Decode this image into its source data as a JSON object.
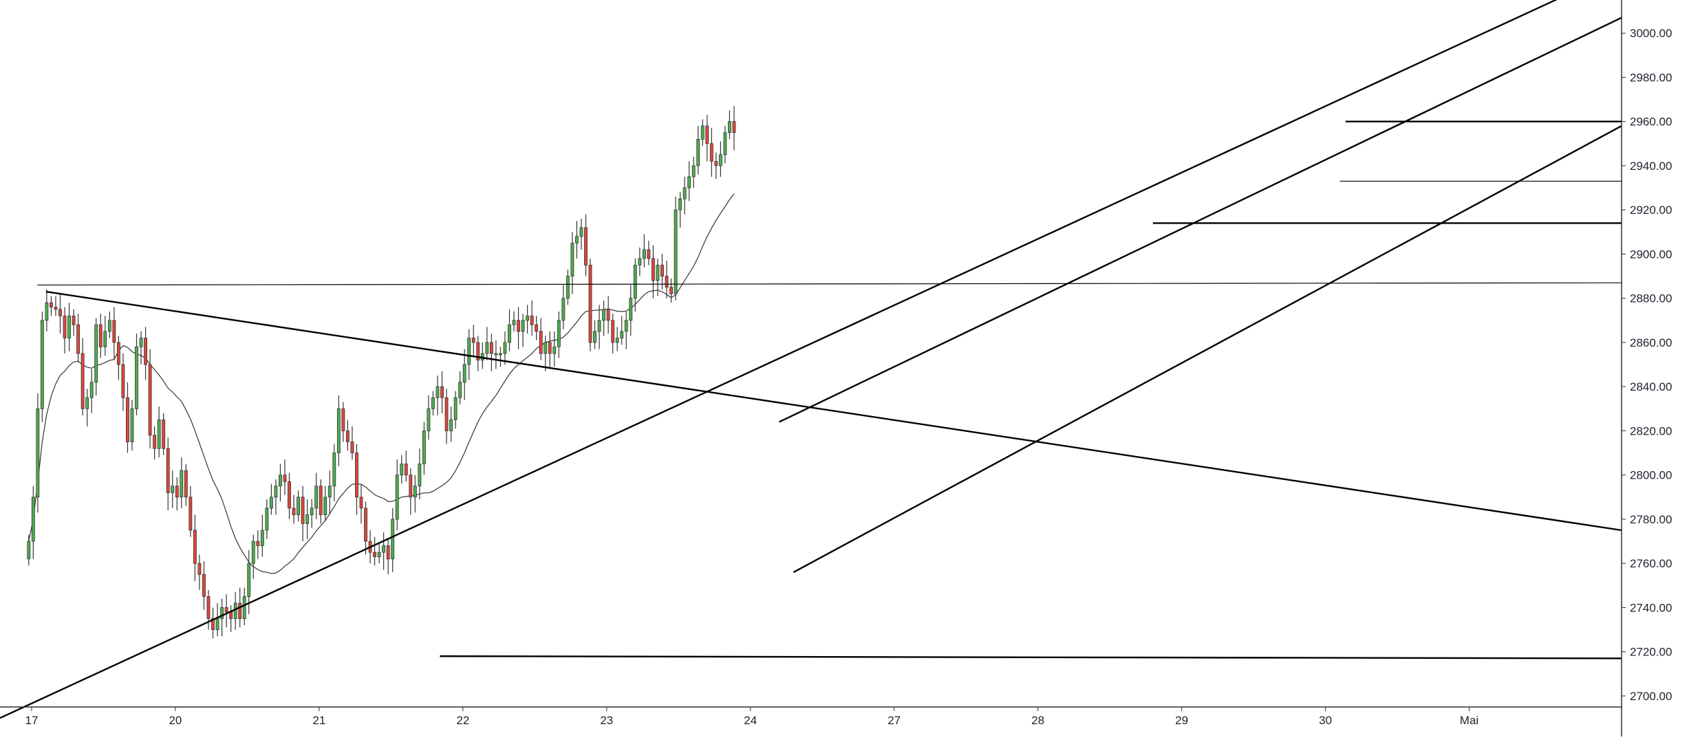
{
  "chart_data": {
    "type": "candlestick",
    "title": "",
    "xlabel": "",
    "ylabel": "",
    "ylim": [
      2695,
      3015
    ],
    "y_ticks": [
      2700,
      2720,
      2740,
      2760,
      2780,
      2800,
      2820,
      2840,
      2860,
      2880,
      2900,
      2920,
      2940,
      2960,
      2980,
      3000
    ],
    "x_ticks": [
      {
        "label": "17",
        "x": 0
      },
      {
        "label": "20",
        "x": 5
      },
      {
        "label": "21",
        "x": 10
      },
      {
        "label": "22",
        "x": 15
      },
      {
        "label": "23",
        "x": 20
      },
      {
        "label": "24",
        "x": 25
      },
      {
        "label": "27",
        "x": 30
      },
      {
        "label": "28",
        "x": 35
      },
      {
        "label": "29",
        "x": 40
      },
      {
        "label": "30",
        "x": 45
      },
      {
        "label": "Mai",
        "x": 50
      }
    ],
    "xlim": [
      -1.1,
      55.3
    ],
    "grid": false,
    "colors": {
      "up": "#4caf50",
      "down": "#e0463c",
      "wick": "#333333",
      "line": "#000000",
      "ma": "#333333"
    },
    "closes": [
      2770,
      2790,
      2830,
      2870,
      2878,
      2876,
      2875,
      2872,
      2862,
      2872,
      2868,
      2855,
      2830,
      2835,
      2842,
      2868,
      2858,
      2865,
      2870,
      2860,
      2850,
      2835,
      2815,
      2830,
      2858,
      2862,
      2850,
      2818,
      2812,
      2825,
      2812,
      2792,
      2795,
      2790,
      2802,
      2790,
      2775,
      2760,
      2755,
      2745,
      2735,
      2730,
      2735,
      2740,
      2738,
      2735,
      2742,
      2735,
      2745,
      2760,
      2770,
      2768,
      2775,
      2785,
      2790,
      2795,
      2800,
      2797,
      2785,
      2782,
      2790,
      2778,
      2782,
      2785,
      2795,
      2782,
      2790,
      2795,
      2810,
      2830,
      2820,
      2815,
      2810,
      2790,
      2785,
      2770,
      2765,
      2763,
      2765,
      2768,
      2762,
      2780,
      2800,
      2805,
      2800,
      2790,
      2795,
      2805,
      2820,
      2830,
      2835,
      2840,
      2835,
      2820,
      2825,
      2835,
      2842,
      2850,
      2862,
      2860,
      2852,
      2855,
      2860,
      2855,
      2855,
      2855,
      2860,
      2868,
      2870,
      2865,
      2870,
      2872,
      2868,
      2865,
      2855,
      2860,
      2855,
      2858,
      2870,
      2880,
      2890,
      2905,
      2908,
      2912,
      2895,
      2860,
      2865,
      2870,
      2875,
      2870,
      2860,
      2862,
      2865,
      2870,
      2880,
      2895,
      2898,
      2902,
      2898,
      2888,
      2895,
      2890,
      2885,
      2882,
      2920,
      2925,
      2930,
      2935,
      2940,
      2952,
      2958,
      2950,
      2942,
      2940,
      2945,
      2955,
      2960,
      2955
    ],
    "ma_note": "",
    "trendlines": [
      {
        "from": [
          0.5,
          2883
        ],
        "to": [
          55.3,
          2775
        ]
      },
      {
        "from": [
          -1.1,
          2690
        ],
        "to": [
          53.5,
          3018
        ]
      },
      {
        "from": [
          26.0,
          2824
        ],
        "to": [
          55.3,
          3007
        ]
      },
      {
        "from": [
          26.5,
          2756
        ],
        "to": [
          55.3,
          2958
        ]
      },
      {
        "from": [
          14.2,
          2718
        ],
        "to": [
          55.3,
          2717
        ]
      },
      {
        "from": [
          0.2,
          2886
        ],
        "to": [
          55.3,
          2887
        ]
      },
      {
        "from": [
          39.0,
          2914
        ],
        "to": [
          55.3,
          2914
        ]
      },
      {
        "from": [
          45.7,
          2960
        ],
        "to": [
          55.3,
          2960
        ]
      },
      {
        "from": [
          45.5,
          2933
        ],
        "to": [
          55.3,
          2933
        ]
      }
    ]
  }
}
